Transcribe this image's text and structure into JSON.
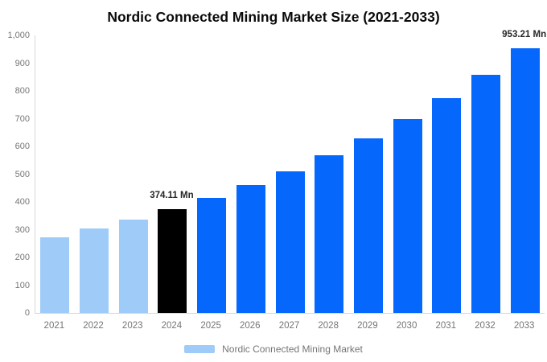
{
  "title": "Nordic Connected Mining Market Size (2021-2033)",
  "legend": {
    "label": "Nordic Connected Mining Market",
    "swatch_color": "#9FCBF8"
  },
  "colors": {
    "bar_past": "#9FCBF8",
    "bar_base_year": "#000000",
    "bar_forecast": "#0667FD",
    "axis_line": "#d8d8d8",
    "tick_text": "#757575",
    "value_label_text": "#262626",
    "title_text": "#0a0a0a",
    "background": "#ffffff"
  },
  "chart_data": {
    "type": "bar",
    "title": "Nordic Connected Mining Market Size (2021-2033)",
    "xlabel": "",
    "ylabel": "",
    "unit": "Mn",
    "categories": [
      "2021",
      "2022",
      "2023",
      "2024",
      "2025",
      "2026",
      "2027",
      "2028",
      "2029",
      "2030",
      "2031",
      "2032",
      "2033"
    ],
    "values": [
      273.9,
      303.9,
      337.2,
      374.11,
      415.1,
      460.6,
      511.0,
      567.0,
      629.1,
      698.0,
      774.4,
      859.2,
      953.21
    ],
    "color_roles": [
      "past",
      "past",
      "past",
      "base_year",
      "forecast",
      "forecast",
      "forecast",
      "forecast",
      "forecast",
      "forecast",
      "forecast",
      "forecast",
      "forecast"
    ],
    "ylim": [
      0,
      1000
    ],
    "ytick_values": [
      0,
      100,
      200,
      300,
      400,
      500,
      600,
      700,
      800,
      900,
      1000
    ],
    "ytick_labels": [
      "0",
      "100",
      "200",
      "300",
      "400",
      "500",
      "600",
      "700",
      "800",
      "900",
      "1,000"
    ],
    "grid": false,
    "legend_position": "bottom-center",
    "annotations": [
      {
        "index": 3,
        "label": "374.11 Mn"
      },
      {
        "index": 12,
        "label": "953.21 Mn"
      }
    ]
  }
}
